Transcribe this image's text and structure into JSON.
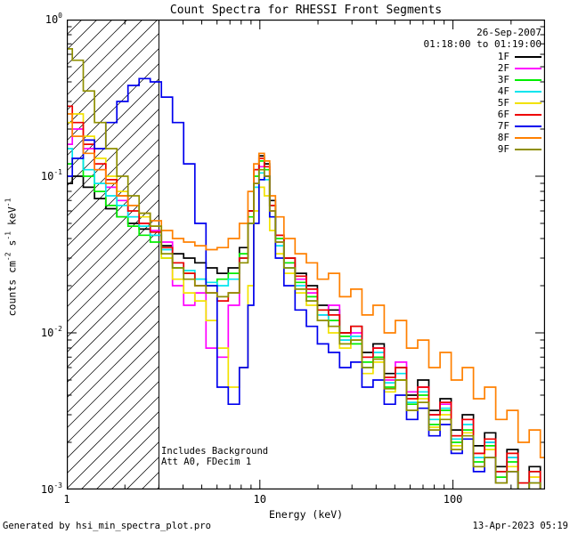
{
  "annotations": {
    "date": "26-Sep-2007",
    "time_range": "01:18:00 to 01:19:00",
    "note_background": "Includes Background",
    "note_attenuator": "Att A0, FDecim 1"
  },
  "footer": {
    "left": "Generated by hsi_min_spectra_plot.pro",
    "right": "13-Apr-2023 05:19"
  },
  "chart_data": {
    "type": "line",
    "mode": "steps",
    "title": "Count Spectra for RHESSI Front Segments",
    "xlabel": "Energy (keV)",
    "ylabel": "counts cm^-2 s^-1 keV^-1",
    "ylabel_parts": [
      [
        "t",
        "counts cm"
      ],
      [
        "s",
        "-2"
      ],
      [
        "t",
        " s"
      ],
      [
        "s",
        "-1"
      ],
      [
        "t",
        " keV"
      ],
      [
        "s",
        "-1"
      ]
    ],
    "xscale": "log",
    "yscale": "log",
    "xlim": [
      1,
      300
    ],
    "ylim": [
      0.001,
      1
    ],
    "grid": false,
    "legend_position": "top-right",
    "hatch_region": {
      "xmin": 1,
      "xmax": 3
    },
    "x_ticks": [
      {
        "value": 1,
        "label": "1"
      },
      {
        "value": 10,
        "label": "10"
      },
      {
        "value": 100,
        "label": "100"
      }
    ],
    "y_ticks": [
      {
        "value": 1,
        "base": "10",
        "exp": "0"
      },
      {
        "value": 0.1,
        "base": "10",
        "exp": "-1"
      },
      {
        "value": 0.01,
        "base": "10",
        "exp": "-2"
      },
      {
        "value": 0.001,
        "base": "10",
        "exp": "-3"
      }
    ],
    "x": [
      1.0,
      1.14,
      1.3,
      1.49,
      1.7,
      1.94,
      2.22,
      2.53,
      2.89,
      3.3,
      3.77,
      4.31,
      4.92,
      5.62,
      6.42,
      7.33,
      8.37,
      9.0,
      9.6,
      10.2,
      10.9,
      11.6,
      12.5,
      14.2,
      16.3,
      18.6,
      21.2,
      24.2,
      27.7,
      31.6,
      36.1,
      41.2,
      47.1,
      53.8,
      61.5,
      70.2,
      80.2,
      91.6,
      104.6,
      119.5,
      136.5,
      155.9,
      178.1,
      203.4,
      232.3,
      265.4,
      303.1
    ],
    "series": [
      {
        "name": "1F",
        "color": "#000000",
        "values": [
          0.09,
          0.1,
          0.085,
          0.072,
          0.062,
          0.055,
          0.05,
          0.046,
          0.042,
          0.036,
          0.032,
          0.03,
          0.028,
          0.026,
          0.024,
          0.026,
          0.035,
          0.06,
          0.11,
          0.135,
          0.12,
          0.07,
          0.042,
          0.03,
          0.024,
          0.02,
          0.015,
          0.014,
          0.01,
          0.011,
          0.0075,
          0.0085,
          0.0055,
          0.006,
          0.004,
          0.005,
          0.0032,
          0.0038,
          0.0024,
          0.003,
          0.0019,
          0.0023,
          0.0014,
          0.0018,
          0.0011,
          0.0014,
          0.001
        ]
      },
      {
        "name": "2F",
        "color": "#ff00ff",
        "values": [
          0.16,
          0.2,
          0.15,
          0.11,
          0.085,
          0.07,
          0.055,
          0.05,
          0.045,
          0.038,
          0.02,
          0.015,
          0.018,
          0.008,
          0.007,
          0.015,
          0.03,
          0.05,
          0.09,
          0.115,
          0.1,
          0.06,
          0.038,
          0.028,
          0.022,
          0.018,
          0.013,
          0.015,
          0.009,
          0.01,
          0.007,
          0.008,
          0.005,
          0.0065,
          0.0042,
          0.0045,
          0.003,
          0.0035,
          0.0022,
          0.0028,
          0.0017,
          0.002,
          0.0013,
          0.0016,
          0.001,
          0.0012,
          0.001
        ]
      },
      {
        "name": "3F",
        "color": "#00ee00",
        "values": [
          0.12,
          0.13,
          0.1,
          0.08,
          0.065,
          0.055,
          0.048,
          0.042,
          0.038,
          0.03,
          0.026,
          0.024,
          0.022,
          0.02,
          0.022,
          0.024,
          0.032,
          0.055,
          0.1,
          0.125,
          0.11,
          0.065,
          0.04,
          0.028,
          0.021,
          0.017,
          0.014,
          0.012,
          0.0095,
          0.0085,
          0.0065,
          0.007,
          0.0045,
          0.005,
          0.0035,
          0.004,
          0.0026,
          0.0032,
          0.002,
          0.0024,
          0.0015,
          0.0019,
          0.0012,
          0.0015,
          0.001,
          0.0011,
          0.001
        ]
      },
      {
        "name": "4F",
        "color": "#00e5ee",
        "values": [
          0.15,
          0.13,
          0.11,
          0.09,
          0.075,
          0.065,
          0.055,
          0.048,
          0.042,
          0.034,
          0.028,
          0.025,
          0.022,
          0.021,
          0.02,
          0.022,
          0.03,
          0.05,
          0.085,
          0.105,
          0.095,
          0.055,
          0.036,
          0.026,
          0.02,
          0.016,
          0.013,
          0.011,
          0.009,
          0.0095,
          0.006,
          0.0075,
          0.0048,
          0.0055,
          0.0036,
          0.0042,
          0.0028,
          0.0033,
          0.0021,
          0.0026,
          0.0016,
          0.002,
          0.0013,
          0.0016,
          0.001,
          0.0013,
          0.001
        ]
      },
      {
        "name": "5F",
        "color": "#f2e200",
        "values": [
          0.22,
          0.25,
          0.18,
          0.13,
          0.1,
          0.08,
          0.065,
          0.055,
          0.048,
          0.03,
          0.022,
          0.018,
          0.016,
          0.012,
          0.008,
          0.0045,
          0.006,
          0.02,
          0.06,
          0.085,
          0.075,
          0.045,
          0.032,
          0.024,
          0.018,
          0.015,
          0.012,
          0.01,
          0.008,
          0.009,
          0.0055,
          0.0065,
          0.0042,
          0.005,
          0.0032,
          0.0038,
          0.0025,
          0.003,
          0.0019,
          0.0023,
          0.0014,
          0.0018,
          0.0011,
          0.0014,
          0.001,
          0.0012,
          0.001
        ]
      },
      {
        "name": "6F",
        "color": "#ee0000",
        "values": [
          0.28,
          0.22,
          0.16,
          0.12,
          0.095,
          0.075,
          0.06,
          0.05,
          0.044,
          0.035,
          0.028,
          0.024,
          0.02,
          0.018,
          0.016,
          0.018,
          0.03,
          0.06,
          0.11,
          0.13,
          0.115,
          0.065,
          0.042,
          0.03,
          0.023,
          0.019,
          0.014,
          0.013,
          0.01,
          0.011,
          0.007,
          0.008,
          0.0052,
          0.006,
          0.0038,
          0.0045,
          0.003,
          0.0036,
          0.0022,
          0.0028,
          0.0017,
          0.0021,
          0.0013,
          0.0017,
          0.0011,
          0.0013,
          0.001
        ]
      },
      {
        "name": "7F",
        "color": "#0000ee",
        "values": [
          0.1,
          0.13,
          0.17,
          0.15,
          0.22,
          0.3,
          0.38,
          0.42,
          0.4,
          0.32,
          0.22,
          0.12,
          0.05,
          0.02,
          0.0045,
          0.0035,
          0.006,
          0.015,
          0.05,
          0.095,
          0.1,
          0.055,
          0.03,
          0.02,
          0.014,
          0.011,
          0.0085,
          0.0075,
          0.006,
          0.0065,
          0.0045,
          0.005,
          0.0035,
          0.004,
          0.0028,
          0.0033,
          0.0022,
          0.0026,
          0.0017,
          0.0021,
          0.0013,
          0.0016,
          0.0011,
          0.0013,
          0.001,
          0.0011,
          0.001
        ]
      },
      {
        "name": "8F",
        "color": "#ff8000",
        "values": [
          0.25,
          0.18,
          0.14,
          0.11,
          0.09,
          0.075,
          0.065,
          0.058,
          0.052,
          0.045,
          0.04,
          0.038,
          0.036,
          0.034,
          0.035,
          0.04,
          0.05,
          0.08,
          0.12,
          0.14,
          0.125,
          0.075,
          0.055,
          0.04,
          0.032,
          0.028,
          0.022,
          0.024,
          0.017,
          0.019,
          0.013,
          0.015,
          0.01,
          0.012,
          0.008,
          0.009,
          0.006,
          0.0075,
          0.005,
          0.006,
          0.0038,
          0.0045,
          0.0028,
          0.0032,
          0.002,
          0.0024,
          0.0016
        ]
      },
      {
        "name": "9F",
        "color": "#8f8f00",
        "values": [
          0.65,
          0.55,
          0.35,
          0.22,
          0.15,
          0.1,
          0.075,
          0.058,
          0.048,
          0.032,
          0.026,
          0.022,
          0.02,
          0.018,
          0.017,
          0.018,
          0.028,
          0.05,
          0.09,
          0.11,
          0.1,
          0.06,
          0.038,
          0.026,
          0.019,
          0.016,
          0.012,
          0.011,
          0.0085,
          0.009,
          0.006,
          0.0068,
          0.0044,
          0.005,
          0.0032,
          0.0036,
          0.0024,
          0.0028,
          0.0018,
          0.0022,
          0.0014,
          0.0016,
          0.0011,
          0.0013,
          0.001,
          0.0011,
          0.001
        ]
      }
    ]
  }
}
